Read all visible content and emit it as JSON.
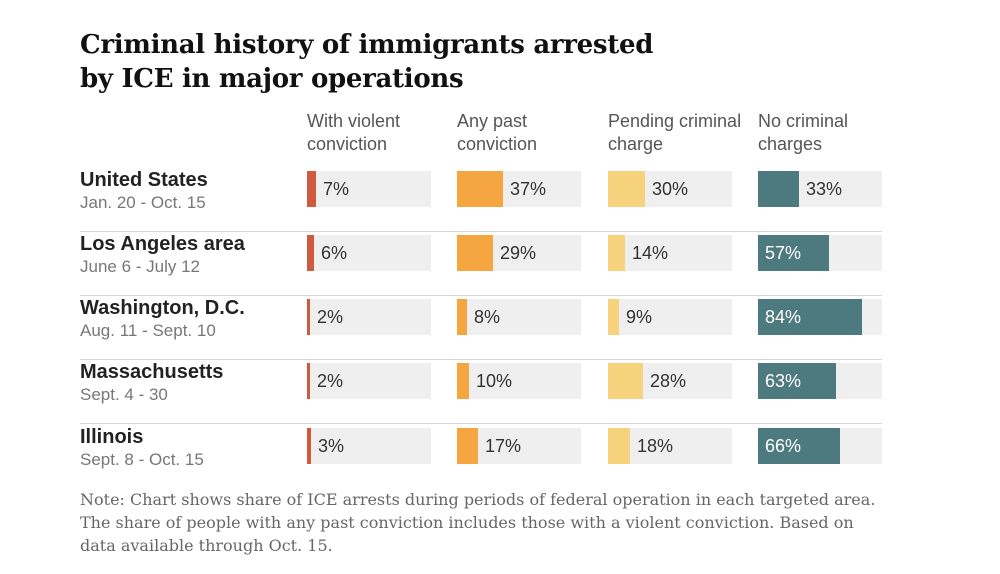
{
  "title": "Criminal history of immigrants arrested by ICE in major operations",
  "colors": {
    "violent": "#cf5a3e",
    "past": "#f5a640",
    "pending": "#f7d27c",
    "none": "#4d7a7e",
    "track": "#efefef"
  },
  "chart_data": {
    "type": "bar",
    "title": "Criminal history of immigrants arrested by ICE in major operations",
    "columns": [
      {
        "key": "violent",
        "label": "With violent conviction"
      },
      {
        "key": "past",
        "label": "Any past conviction"
      },
      {
        "key": "pending",
        "label": "Pending criminal charge"
      },
      {
        "key": "none",
        "label": "No criminal charges"
      }
    ],
    "unit": "%",
    "ylim": [
      0,
      100
    ],
    "rows": [
      {
        "region": "United States",
        "dates": "Jan. 20 - Oct. 15",
        "values": [
          7,
          37,
          30,
          33
        ]
      },
      {
        "region": "Los Angeles area",
        "dates": "June 6 - July 12",
        "values": [
          6,
          29,
          14,
          57
        ]
      },
      {
        "region": "Washington, D.C.",
        "dates": "Aug. 11 - Sept. 10",
        "values": [
          2,
          8,
          9,
          84
        ]
      },
      {
        "region": "Massachusetts",
        "dates": "Sept. 4 - 30",
        "values": [
          2,
          10,
          28,
          63
        ]
      },
      {
        "region": "Illinois",
        "dates": "Sept. 8 - Oct. 15",
        "values": [
          3,
          17,
          18,
          66
        ]
      }
    ]
  },
  "note": "Note: Chart shows share of ICE arrests during periods of federal operation in each targeted area. The share of people with any past conviction includes those with a violent conviction. Based on data available through Oct. 15."
}
